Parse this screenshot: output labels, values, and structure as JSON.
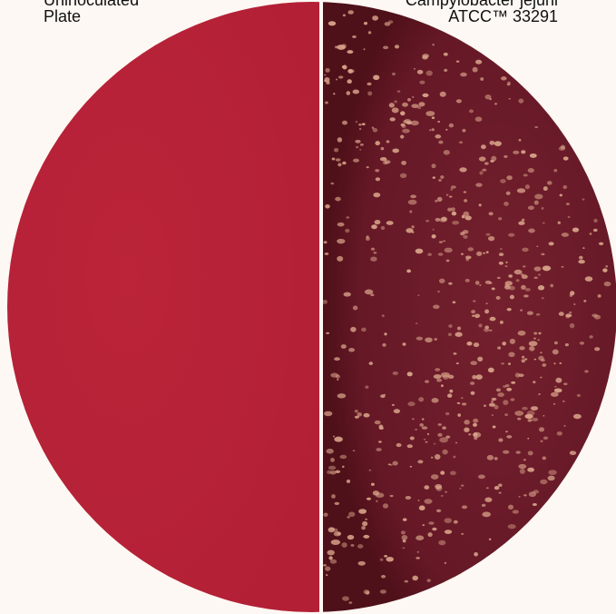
{
  "labels": {
    "left": {
      "line1": "Uninoculated",
      "line2": "Plate"
    },
    "right": {
      "line1": "Campylobacter jejuni",
      "line2": "ATCC™ 33291"
    }
  },
  "colors": {
    "background": "#fdf8f3",
    "uninoculated_agar": "#b8233a",
    "inoculated_agar": "#6b1a28",
    "colony": "#d9a58a",
    "divider": "#fdf8f3"
  }
}
